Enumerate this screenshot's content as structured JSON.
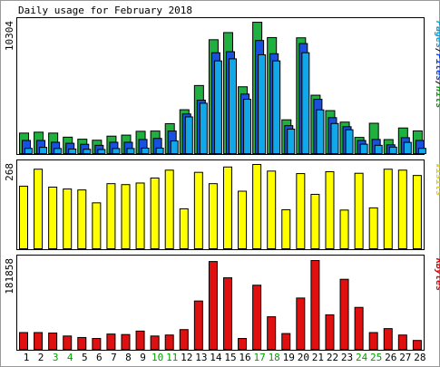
{
  "chart_data": {
    "type": "bar",
    "title": "Daily usage for February 2018",
    "categories": [
      "1",
      "2",
      "3",
      "4",
      "5",
      "6",
      "7",
      "8",
      "9",
      "10",
      "11",
      "12",
      "13",
      "14",
      "15",
      "16",
      "17",
      "18",
      "19",
      "20",
      "21",
      "22",
      "23",
      "24",
      "25",
      "26",
      "27",
      "28"
    ],
    "weekend_days": [
      "3",
      "4",
      "10",
      "11",
      "17",
      "18",
      "24",
      "25"
    ],
    "panels": [
      {
        "id": "hits",
        "max_label": "10304",
        "ylim": [
          0,
          10304
        ],
        "legend": [
          {
            "text": "Pages",
            "color": "#00a0e0"
          },
          {
            "text": "/",
            "color": "#000000"
          },
          {
            "text": "Files",
            "color": "#0040ff"
          },
          {
            "text": "/",
            "color": "#000000"
          },
          {
            "text": "Hits",
            "color": "#00a000"
          }
        ],
        "series": [
          {
            "name": "Hits",
            "color": "#20b040",
            "values": [
              1610,
              1680,
              1610,
              1290,
              1130,
              1050,
              1370,
              1450,
              1750,
              1770,
              2350,
              3440,
              5340,
              8930,
              9490,
              5240,
              10300,
              9100,
              2650,
              9080,
              4580,
              3370,
              2470,
              1270,
              2380,
              1100,
              2010,
              1780
            ]
          },
          {
            "name": "Files",
            "color": "#1850e0",
            "values": [
              1030,
              1030,
              890,
              810,
              730,
              650,
              890,
              890,
              1110,
              1190,
              1770,
              3110,
              4190,
              7910,
              7990,
              4670,
              8870,
              7830,
              2190,
              8630,
              4260,
              2820,
              2110,
              1030,
              1110,
              690,
              1250,
              1030
            ]
          },
          {
            "name": "Pages",
            "color": "#10a8e8",
            "values": [
              410,
              490,
              400,
              360,
              340,
              320,
              400,
              400,
              430,
              430,
              990,
              2880,
              3950,
              7270,
              7430,
              4260,
              7750,
              7270,
              1920,
              7910,
              3430,
              2360,
              1870,
              740,
              650,
              510,
              880,
              410
            ]
          }
        ]
      },
      {
        "id": "visits",
        "max_label": "268",
        "ylim": [
          0,
          268
        ],
        "legend": [
          {
            "text": "Visits",
            "color": "#e0d000"
          }
        ],
        "series": [
          {
            "name": "Visits",
            "color": "#ffff00",
            "values": [
              199,
              253,
              196,
              190,
              187,
              146,
              207,
              204,
              209,
              225,
              250,
              127,
              243,
              207,
              260,
              183,
              268,
              247,
              124,
              239,
              173,
              245,
              123,
              240,
              130,
              253,
              250,
              233
            ]
          }
        ]
      },
      {
        "id": "kbytes",
        "max_label": "181858",
        "ylim": [
          0,
          181858
        ],
        "legend": [
          {
            "text": "KBytes",
            "color": "#e00000"
          }
        ],
        "series": [
          {
            "name": "KBytes",
            "color": "#e01010",
            "values": [
              34000,
              34000,
              33000,
              27000,
              24000,
              22000,
              31000,
              30000,
              37000,
              27000,
              29000,
              40000,
              98000,
              178000,
              145000,
              22000,
              130000,
              66000,
              32000,
              104000,
              180000,
              70000,
              142000,
              85000,
              34000,
              42000,
              29000,
              18000
            ]
          }
        ]
      }
    ]
  }
}
